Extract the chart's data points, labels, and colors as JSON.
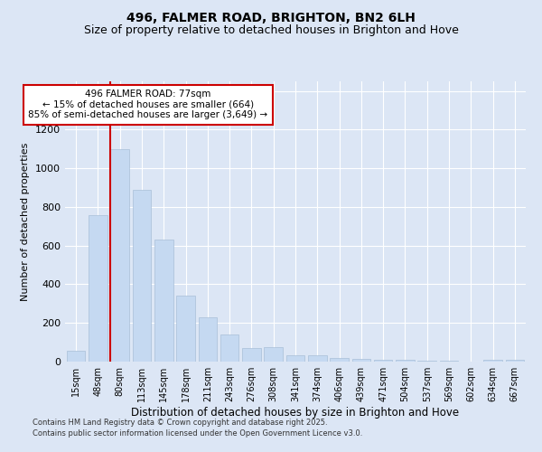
{
  "title": "496, FALMER ROAD, BRIGHTON, BN2 6LH",
  "subtitle": "Size of property relative to detached houses in Brighton and Hove",
  "xlabel": "Distribution of detached houses by size in Brighton and Hove",
  "ylabel": "Number of detached properties",
  "categories": [
    "15sqm",
    "48sqm",
    "80sqm",
    "113sqm",
    "145sqm",
    "178sqm",
    "211sqm",
    "243sqm",
    "276sqm",
    "308sqm",
    "341sqm",
    "374sqm",
    "406sqm",
    "439sqm",
    "471sqm",
    "504sqm",
    "537sqm",
    "569sqm",
    "602sqm",
    "634sqm",
    "667sqm"
  ],
  "values": [
    55,
    760,
    1100,
    890,
    630,
    340,
    230,
    140,
    70,
    75,
    35,
    35,
    20,
    15,
    10,
    8,
    5,
    3,
    2,
    8,
    8
  ],
  "bar_color": "#c5d9f1",
  "bar_edge_color": "#a8bfd8",
  "vline_color": "#cc0000",
  "vline_x_index": 2,
  "annotation_text": "496 FALMER ROAD: 77sqm\n← 15% of detached houses are smaller (664)\n85% of semi-detached houses are larger (3,649) →",
  "annotation_box_color": "#ffffff",
  "annotation_box_edge_color": "#cc0000",
  "ylim_max": 1450,
  "background_color": "#dce6f5",
  "plot_bg_color": "#dce6f5",
  "grid_color": "#ffffff",
  "footnote1": "Contains HM Land Registry data © Crown copyright and database right 2025.",
  "footnote2": "Contains public sector information licensed under the Open Government Licence v3.0.",
  "title_fontsize": 10,
  "subtitle_fontsize": 9,
  "tick_fontsize": 7,
  "ylabel_fontsize": 8,
  "xlabel_fontsize": 8.5,
  "annot_fontsize": 7.5
}
